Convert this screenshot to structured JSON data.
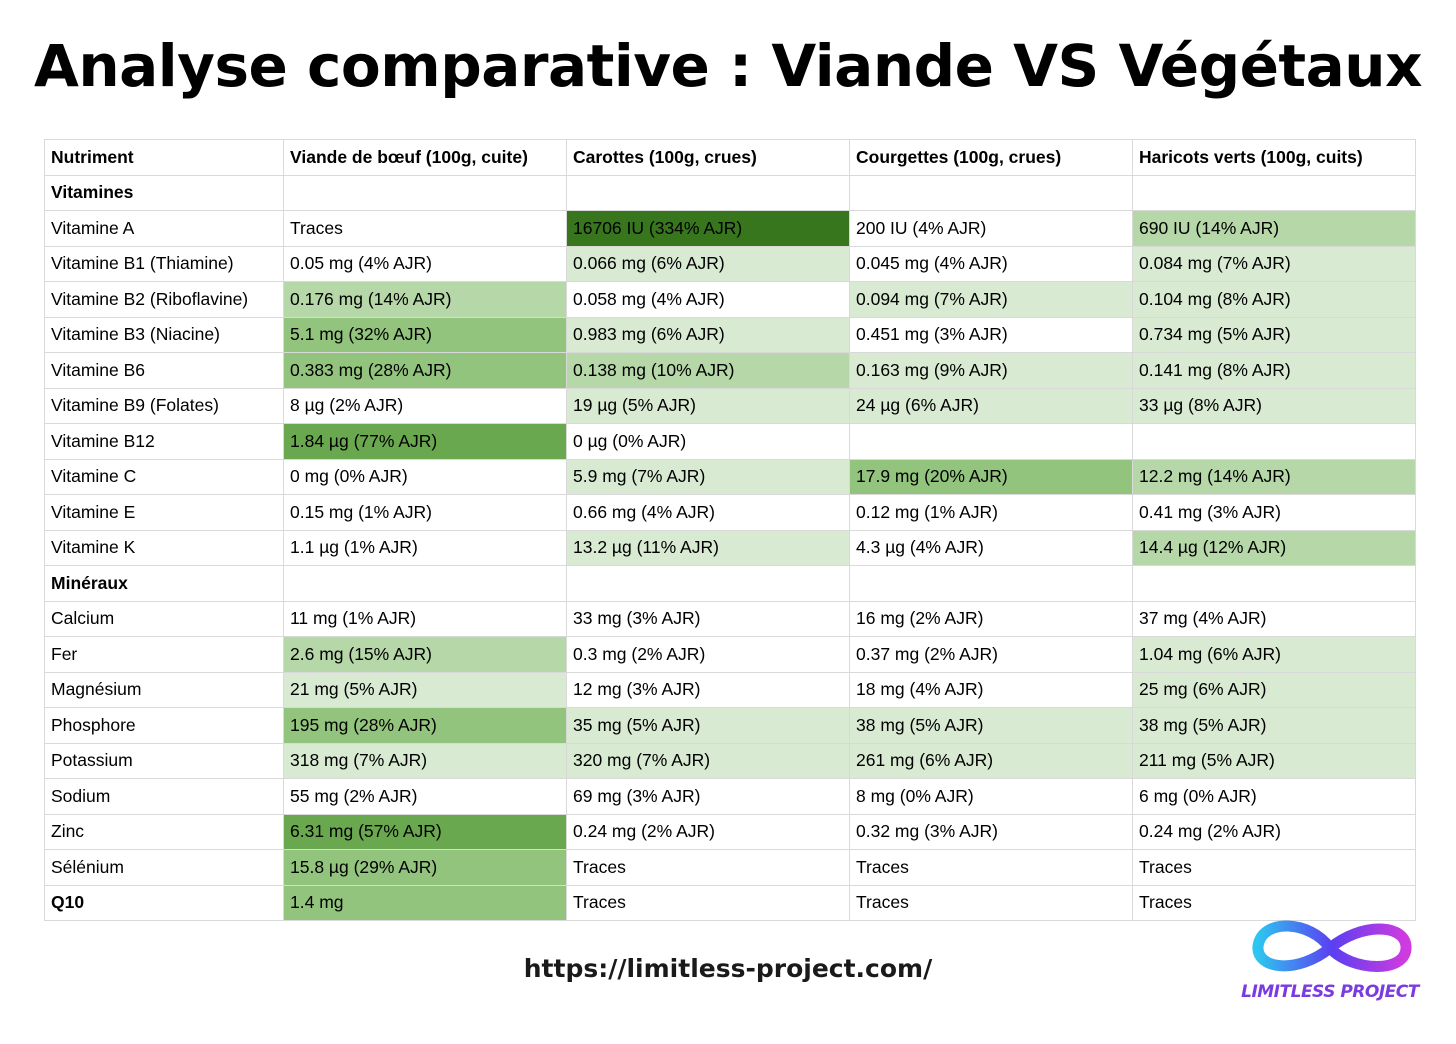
{
  "title": "Analyse comparative : Viande VS Végétaux",
  "table": {
    "headers": [
      "Nutriment",
      "Viande de bœuf (100g, cuite)",
      "Carottes (100g, crues)",
      "Courgettes (100g, crues)",
      "Haricots verts (100g, cuits)"
    ],
    "rows": [
      {
        "cells": [
          "Vitamines",
          "",
          "",
          "",
          ""
        ],
        "section": true
      },
      {
        "cells": [
          "Vitamine A",
          "Traces",
          "16706 IU (334% AJR)",
          "200 IU (4% AJR)",
          "690 IU (14% AJR)"
        ],
        "shades": [
          0,
          0,
          5,
          0,
          2
        ]
      },
      {
        "cells": [
          "Vitamine B1 (Thiamine)",
          "0.05 mg (4% AJR)",
          "0.066 mg (6% AJR)",
          "0.045 mg (4% AJR)",
          "0.084 mg (7% AJR)"
        ],
        "shades": [
          0,
          0,
          1,
          0,
          1
        ]
      },
      {
        "cells": [
          "Vitamine B2 (Riboflavine)",
          "0.176 mg (14% AJR)",
          "0.058 mg (4% AJR)",
          "0.094 mg (7% AJR)",
          "0.104 mg (8% AJR)"
        ],
        "shades": [
          0,
          2,
          0,
          1,
          1
        ]
      },
      {
        "cells": [
          "Vitamine B3 (Niacine)",
          "5.1 mg (32% AJR)",
          "0.983 mg (6% AJR)",
          "0.451 mg (3% AJR)",
          "0.734 mg (5% AJR)"
        ],
        "shades": [
          0,
          3,
          1,
          0,
          1
        ]
      },
      {
        "cells": [
          "Vitamine B6",
          "0.383 mg (28% AJR)",
          "0.138 mg (10% AJR)",
          "0.163 mg (9% AJR)",
          "0.141 mg (8% AJR)"
        ],
        "shades": [
          0,
          3,
          2,
          1,
          1
        ]
      },
      {
        "cells": [
          "Vitamine B9 (Folates)",
          "8 µg (2% AJR)",
          "19 µg (5% AJR)",
          "24 µg (6% AJR)",
          "33 µg (8% AJR)"
        ],
        "shades": [
          0,
          0,
          1,
          1,
          1
        ]
      },
      {
        "cells": [
          "Vitamine B12",
          "1.84 µg (77% AJR)",
          "0 µg (0% AJR)",
          "",
          ""
        ],
        "shades": [
          0,
          4,
          0,
          0,
          0
        ]
      },
      {
        "cells": [
          "Vitamine C",
          "0 mg (0% AJR)",
          "5.9 mg (7% AJR)",
          "17.9 mg (20% AJR)",
          "12.2 mg (14% AJR)"
        ],
        "shades": [
          0,
          0,
          1,
          3,
          2
        ]
      },
      {
        "cells": [
          "Vitamine E",
          "0.15 mg (1% AJR)",
          "0.66 mg (4% AJR)",
          "0.12 mg (1% AJR)",
          "0.41 mg (3% AJR)"
        ],
        "shades": [
          0,
          0,
          0,
          0,
          0
        ]
      },
      {
        "cells": [
          "Vitamine K",
          "1.1 µg (1% AJR)",
          "13.2 µg (11% AJR)",
          "4.3 µg (4% AJR)",
          "14.4 µg (12% AJR)"
        ],
        "shades": [
          0,
          0,
          1,
          0,
          2
        ]
      },
      {
        "cells": [
          "Minéraux",
          "",
          "",
          "",
          ""
        ],
        "section": true
      },
      {
        "cells": [
          "Calcium",
          "11 mg (1% AJR)",
          "33 mg (3% AJR)",
          "16 mg (2% AJR)",
          "37 mg (4% AJR)"
        ],
        "shades": [
          0,
          0,
          0,
          0,
          0
        ]
      },
      {
        "cells": [
          "Fer",
          "2.6 mg (15% AJR)",
          "0.3 mg (2% AJR)",
          "0.37 mg (2% AJR)",
          "1.04 mg (6% AJR)"
        ],
        "shades": [
          0,
          2,
          0,
          0,
          1
        ]
      },
      {
        "cells": [
          "Magnésium",
          "21 mg (5% AJR)",
          "12 mg (3% AJR)",
          "18 mg (4% AJR)",
          "25 mg (6% AJR)"
        ],
        "shades": [
          0,
          1,
          0,
          0,
          1
        ]
      },
      {
        "cells": [
          "Phosphore",
          "195 mg (28% AJR)",
          "35 mg (5% AJR)",
          "38 mg (5% AJR)",
          "38 mg (5% AJR)"
        ],
        "shades": [
          0,
          3,
          1,
          1,
          1
        ]
      },
      {
        "cells": [
          "Potassium",
          "318 mg (7% AJR)",
          "320 mg (7% AJR)",
          "261 mg (6% AJR)",
          "211 mg (5% AJR)"
        ],
        "shades": [
          0,
          1,
          1,
          1,
          1
        ]
      },
      {
        "cells": [
          "Sodium",
          "55 mg (2% AJR)",
          "69 mg (3% AJR)",
          "8 mg (0% AJR)",
          "6 mg (0% AJR)"
        ],
        "shades": [
          0,
          0,
          0,
          0,
          0
        ]
      },
      {
        "cells": [
          "Zinc",
          "6.31 mg (57% AJR)",
          "0.24 mg (2% AJR)",
          "0.32 mg (3% AJR)",
          "0.24 mg (2% AJR)"
        ],
        "shades": [
          0,
          4,
          0,
          0,
          0
        ]
      },
      {
        "cells": [
          "Sélénium",
          "15.8 µg (29% AJR)",
          "Traces",
          "Traces",
          "Traces"
        ],
        "shades": [
          0,
          3,
          0,
          0,
          0
        ]
      },
      {
        "cells": [
          "Q10",
          "1.4 mg",
          "Traces",
          "Traces",
          "Traces"
        ],
        "shades": [
          0,
          3,
          0,
          0,
          0
        ],
        "bold_first": true
      }
    ]
  },
  "footer": {
    "url": "https://limitless-project.com/"
  },
  "logo": {
    "text": "LIMITLESS PROJECT",
    "icon": "infinity-icon"
  },
  "colors": {
    "shade1": "#d9ead3",
    "shade2": "#b6d7a8",
    "shade3": "#93c47d",
    "shade4": "#6aa84f",
    "shade5": "#38761d"
  }
}
